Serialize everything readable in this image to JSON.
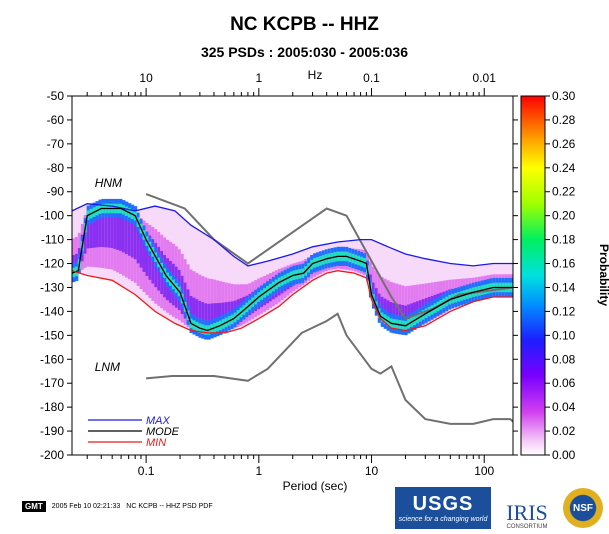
{
  "header": {
    "title": "NC KCPB -- HHZ",
    "subtitle": "325 PSDs : 2005:030 - 2005:036"
  },
  "footer": {
    "gmt_label": "GMT",
    "timestamp": "2005 Feb 10 02:21:33",
    "caption": "NC KCPB -- HHZ PSD PDF"
  },
  "logos": {
    "usgs": "USGS",
    "usgs_tagline": "science for a changing world",
    "iris": "IRIS",
    "iris_sub": "CONSORTIUM",
    "nsf": "NSF"
  },
  "chart_data": {
    "type": "heatmap",
    "xscale": "log",
    "xlabel": "Period (sec)",
    "x_top_label": "Hz",
    "xlim": [
      0.022,
      180
    ],
    "ylim": [
      -200,
      -50
    ],
    "x_ticks": [
      0.1,
      1,
      10,
      100
    ],
    "x_tick_labels": [
      "0.1",
      "1",
      "10",
      "100"
    ],
    "x_top_ticks": [
      0.1,
      1,
      10,
      100
    ],
    "x_top_tick_labels": [
      "10",
      "1",
      "0.1",
      "0.01"
    ],
    "y_ticks": [
      -50,
      -60,
      -70,
      -80,
      -90,
      -100,
      -110,
      -120,
      -130,
      -140,
      -150,
      -160,
      -170,
      -180,
      -190,
      -200
    ],
    "colorbar": {
      "label": "Probability",
      "range": [
        0,
        0.3
      ],
      "ticks": [
        "0.00",
        "0.02",
        "0.04",
        "0.06",
        "0.08",
        "0.10",
        "0.12",
        "0.14",
        "0.16",
        "0.18",
        "0.20",
        "0.22",
        "0.24",
        "0.26",
        "0.28",
        "0.30"
      ]
    },
    "annotations": [
      {
        "text": "HNM",
        "x": 0.035,
        "y": -88
      },
      {
        "text": "LNM",
        "x": 0.035,
        "y": -165
      }
    ],
    "legend": [
      {
        "label": "MAX",
        "color": "#1a1aee"
      },
      {
        "label": "MODE",
        "color": "#000000"
      },
      {
        "label": "MIN",
        "color": "#ee1a1a"
      }
    ],
    "series": [
      {
        "name": "HNM",
        "color": "#707070",
        "points": [
          [
            0.1,
            -91
          ],
          [
            0.22,
            -97
          ],
          [
            0.4,
            -110
          ],
          [
            0.8,
            -120
          ],
          [
            4,
            -97
          ],
          [
            6,
            -100
          ],
          [
            15,
            -134
          ],
          [
            20,
            -143
          ],
          [
            35,
            -139
          ],
          [
            60,
            -133
          ],
          [
            180,
            -130
          ]
        ]
      },
      {
        "name": "LNM",
        "color": "#707070",
        "points": [
          [
            0.1,
            -168
          ],
          [
            0.17,
            -167
          ],
          [
            0.4,
            -167
          ],
          [
            0.8,
            -169
          ],
          [
            1.2,
            -164
          ],
          [
            2.4,
            -149
          ],
          [
            4,
            -144
          ],
          [
            5,
            -141
          ],
          [
            6,
            -150
          ],
          [
            10,
            -164
          ],
          [
            12,
            -166
          ],
          [
            15,
            -163
          ],
          [
            20,
            -177
          ],
          [
            30,
            -185
          ],
          [
            50,
            -187
          ],
          [
            80,
            -187
          ],
          [
            120,
            -185
          ],
          [
            170,
            -185
          ],
          [
            180,
            -186
          ]
        ]
      },
      {
        "name": "MAX",
        "color": "#1a1aee",
        "points": [
          [
            0.022,
            -98
          ],
          [
            0.03,
            -95
          ],
          [
            0.05,
            -96
          ],
          [
            0.08,
            -98
          ],
          [
            0.12,
            -96
          ],
          [
            0.18,
            -98
          ],
          [
            0.25,
            -104
          ],
          [
            0.4,
            -110
          ],
          [
            0.6,
            -117
          ],
          [
            0.8,
            -121
          ],
          [
            1.2,
            -119
          ],
          [
            2,
            -116
          ],
          [
            3,
            -113
          ],
          [
            5,
            -111
          ],
          [
            8,
            -110
          ],
          [
            10,
            -110
          ],
          [
            14,
            -113
          ],
          [
            20,
            -116
          ],
          [
            30,
            -118
          ],
          [
            50,
            -120
          ],
          [
            80,
            -121
          ],
          [
            120,
            -120
          ],
          [
            180,
            -120
          ]
        ]
      },
      {
        "name": "MODE",
        "color": "#000000",
        "points": [
          [
            0.022,
            -124
          ],
          [
            0.025,
            -123
          ],
          [
            0.03,
            -100
          ],
          [
            0.04,
            -97
          ],
          [
            0.06,
            -97
          ],
          [
            0.08,
            -100
          ],
          [
            0.1,
            -110
          ],
          [
            0.15,
            -125
          ],
          [
            0.2,
            -132
          ],
          [
            0.25,
            -145
          ],
          [
            0.3,
            -147
          ],
          [
            0.35,
            -148
          ],
          [
            0.45,
            -146
          ],
          [
            0.6,
            -143
          ],
          [
            0.8,
            -138
          ],
          [
            1,
            -134
          ],
          [
            1.5,
            -128
          ],
          [
            2,
            -125
          ],
          [
            2.5,
            -124
          ],
          [
            3,
            -120
          ],
          [
            4,
            -118
          ],
          [
            5,
            -117
          ],
          [
            6,
            -117
          ],
          [
            8,
            -119
          ],
          [
            9,
            -120
          ],
          [
            10,
            -133
          ],
          [
            12,
            -142
          ],
          [
            15,
            -145
          ],
          [
            20,
            -146
          ],
          [
            30,
            -141
          ],
          [
            50,
            -135
          ],
          [
            80,
            -132
          ],
          [
            120,
            -130
          ],
          [
            180,
            -130
          ]
        ]
      },
      {
        "name": "MIN",
        "color": "#ee1a1a",
        "points": [
          [
            0.022,
            -123
          ],
          [
            0.03,
            -125
          ],
          [
            0.05,
            -127
          ],
          [
            0.08,
            -133
          ],
          [
            0.12,
            -140
          ],
          [
            0.18,
            -145
          ],
          [
            0.25,
            -148
          ],
          [
            0.35,
            -149
          ],
          [
            0.5,
            -149
          ],
          [
            0.7,
            -147
          ],
          [
            1,
            -143
          ],
          [
            1.5,
            -138
          ],
          [
            2,
            -133
          ],
          [
            3,
            -127
          ],
          [
            4,
            -124
          ],
          [
            5,
            -123
          ],
          [
            7,
            -124
          ],
          [
            9,
            -126
          ],
          [
            10,
            -135
          ],
          [
            12,
            -143
          ],
          [
            15,
            -147
          ],
          [
            20,
            -148
          ],
          [
            30,
            -146
          ],
          [
            50,
            -140
          ],
          [
            80,
            -136
          ],
          [
            120,
            -134
          ],
          [
            180,
            -134
          ]
        ]
      }
    ]
  }
}
